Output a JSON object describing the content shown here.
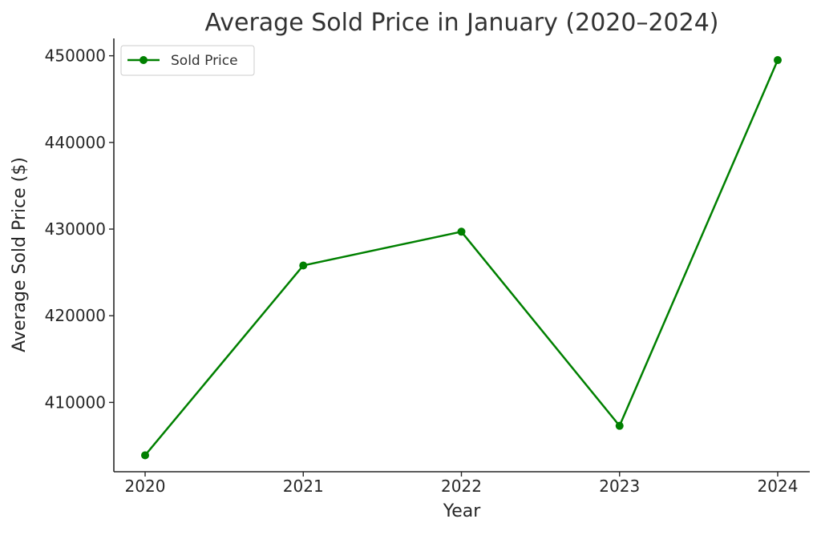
{
  "chart_data": {
    "type": "line",
    "title": "Average Sold Price in January (2020–2024)",
    "xlabel": "Year",
    "ylabel": "Average Sold Price ($)",
    "categories": [
      "2020",
      "2021",
      "2022",
      "2023",
      "2024"
    ],
    "x": [
      2020,
      2021,
      2022,
      2023,
      2024
    ],
    "yticks": [
      "410000",
      "420000",
      "430000",
      "440000",
      "450000"
    ],
    "ylim": [
      402000,
      452000
    ],
    "series": [
      {
        "name": "Sold Price",
        "values": [
          403900,
          425800,
          429700,
          407300,
          449500
        ]
      }
    ],
    "legend": "top-left",
    "grid": false,
    "colors": {
      "line": "#008000",
      "axis": "#262626"
    }
  }
}
